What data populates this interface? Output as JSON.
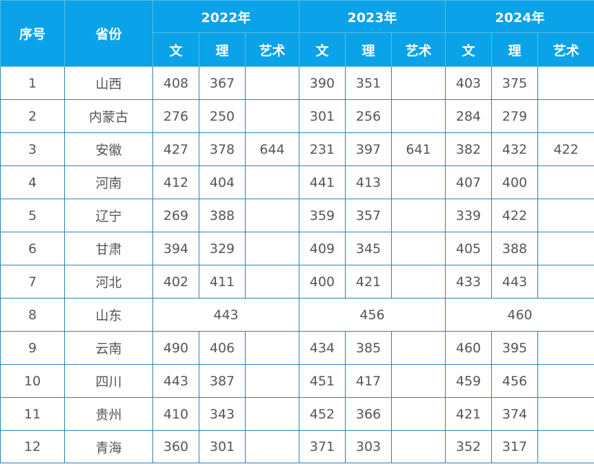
{
  "header": {
    "index_label": "序号",
    "province_label": "省份",
    "years": [
      "2022年",
      "2023年",
      "2024年"
    ],
    "subjects": [
      "文",
      "理",
      "艺术"
    ]
  },
  "rows": [
    {
      "index": "1",
      "province": "山西",
      "scores": [
        "408",
        "367",
        "",
        "390",
        "351",
        "",
        "403",
        "375",
        ""
      ]
    },
    {
      "index": "2",
      "province": "内蒙古",
      "scores": [
        "276",
        "250",
        "",
        "301",
        "256",
        "",
        "284",
        "279",
        ""
      ]
    },
    {
      "index": "3",
      "province": "安徽",
      "scores": [
        "427",
        "378",
        "644",
        "231",
        "397",
        "641",
        "382",
        "432",
        "422"
      ]
    },
    {
      "index": "4",
      "province": "河南",
      "scores": [
        "412",
        "404",
        "",
        "441",
        "413",
        "",
        "407",
        "400",
        ""
      ]
    },
    {
      "index": "5",
      "province": "辽宁",
      "scores": [
        "269",
        "388",
        "",
        "359",
        "357",
        "",
        "339",
        "422",
        ""
      ]
    },
    {
      "index": "6",
      "province": "甘肃",
      "scores": [
        "394",
        "329",
        "",
        "409",
        "345",
        "",
        "405",
        "388",
        ""
      ]
    },
    {
      "index": "7",
      "province": "河北",
      "scores": [
        "402",
        "411",
        "",
        "400",
        "421",
        "",
        "433",
        "443",
        ""
      ]
    },
    {
      "index": "8",
      "province": "山东",
      "merged": [
        "443",
        "456",
        "460"
      ]
    },
    {
      "index": "9",
      "province": "云南",
      "scores": [
        "490",
        "406",
        "",
        "434",
        "385",
        "",
        "460",
        "395",
        ""
      ]
    },
    {
      "index": "10",
      "province": "四川",
      "scores": [
        "443",
        "387",
        "",
        "451",
        "417",
        "",
        "459",
        "456",
        ""
      ]
    },
    {
      "index": "11",
      "province": "贵州",
      "scores": [
        "410",
        "343",
        "",
        "452",
        "366",
        "",
        "421",
        "374",
        ""
      ]
    },
    {
      "index": "12",
      "province": "青海",
      "scores": [
        "360",
        "301",
        "",
        "371",
        "303",
        "",
        "352",
        "317",
        ""
      ]
    }
  ]
}
